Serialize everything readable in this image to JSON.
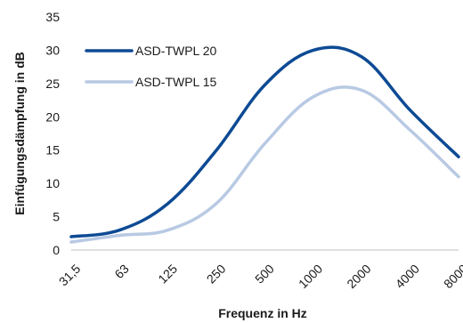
{
  "chart_data": {
    "type": "line",
    "xlabel": "Frequenz in Hz",
    "ylabel": "Einfügungsdämpfung in dB",
    "categories": [
      "31,5",
      "63",
      "125",
      "250",
      "500",
      "1000",
      "2000",
      "4000",
      "8000"
    ],
    "ylim": [
      0,
      35
    ],
    "yticks": [
      "0",
      "5",
      "10",
      "15",
      "20",
      "25",
      "30",
      "35"
    ],
    "grid": false,
    "legend": "top-left",
    "series": [
      {
        "name": "ASD-TWPL 20",
        "color": "#0d4a94",
        "values": [
          2.0,
          3.0,
          7.0,
          15.0,
          24.8,
          30.0,
          29.0,
          21.0,
          14.0
        ]
      },
      {
        "name": "ASD-TWPL 15",
        "color": "#b8c9e3",
        "values": [
          1.2,
          2.2,
          3.0,
          7.0,
          16.0,
          23.0,
          24.0,
          18.0,
          11.0
        ]
      }
    ]
  }
}
